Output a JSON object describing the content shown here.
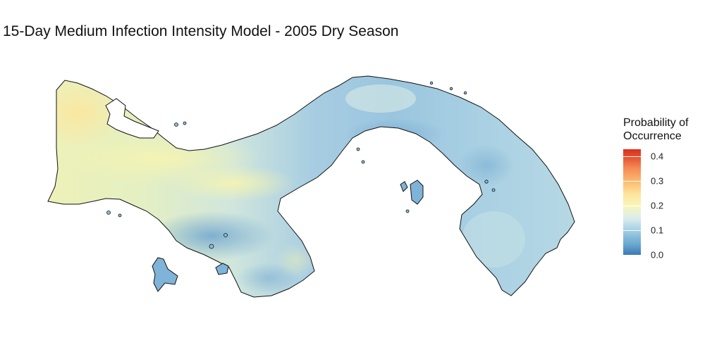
{
  "title": "15-Day Medium Infection Intensity Model - 2005 Dry Season",
  "legend": {
    "title_line1": "Probability of",
    "title_line2": "Occurrence",
    "ticks": [
      {
        "value": 0.0,
        "label": "0.0"
      },
      {
        "value": 0.1,
        "label": "0.1"
      },
      {
        "value": 0.2,
        "label": "0.2"
      },
      {
        "value": 0.3,
        "label": "0.3"
      },
      {
        "value": 0.4,
        "label": "0.4"
      }
    ],
    "min": 0.0,
    "max": 0.43
  },
  "colors": {
    "low": "#3a78b6",
    "mid": "#f9f6bc",
    "high": "#d7301f",
    "outline": "#111111"
  }
}
